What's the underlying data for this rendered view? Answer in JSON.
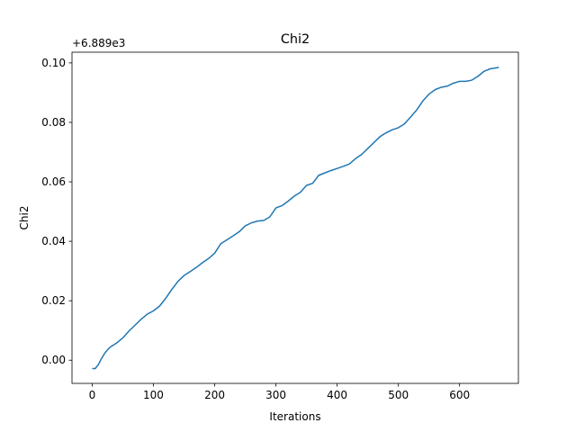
{
  "chart_data": {
    "type": "line",
    "title": "Chi2",
    "xlabel": "Iterations",
    "ylabel": "Chi2",
    "offset_text": "+6.889e3",
    "xlim": [
      -33,
      696
    ],
    "ylim": [
      -0.0078,
      0.1036
    ],
    "x_ticks": [
      0,
      100,
      200,
      300,
      400,
      500,
      600
    ],
    "y_ticks": [
      0.0,
      0.02,
      0.04,
      0.06,
      0.08,
      0.1
    ],
    "x_tick_labels": [
      "0",
      "100",
      "200",
      "300",
      "400",
      "500",
      "600"
    ],
    "y_tick_labels": [
      "0.00",
      "0.02",
      "0.04",
      "0.06",
      "0.08",
      "0.10"
    ],
    "grid": false,
    "line_color": "#1f77b4",
    "series": [
      {
        "x": [
          0,
          5,
          10,
          15,
          20,
          25,
          30,
          40,
          50,
          60,
          70,
          80,
          90,
          100,
          110,
          120,
          130,
          140,
          150,
          160,
          170,
          180,
          190,
          200,
          210,
          220,
          230,
          240,
          250,
          260,
          270,
          280,
          290,
          300,
          310,
          320,
          330,
          340,
          350,
          360,
          370,
          380,
          390,
          400,
          410,
          420,
          430,
          440,
          450,
          460,
          470,
          480,
          490,
          500,
          510,
          520,
          530,
          540,
          550,
          560,
          570,
          580,
          590,
          600,
          610,
          620,
          630,
          640,
          650,
          664
        ],
        "y": [
          -0.0028,
          -0.0028,
          -0.0015,
          0.0005,
          0.0022,
          0.0035,
          0.0045,
          0.0058,
          0.0075,
          0.0098,
          0.0118,
          0.0138,
          0.0155,
          0.0166,
          0.0182,
          0.0208,
          0.0238,
          0.0265,
          0.0285,
          0.0298,
          0.0312,
          0.0328,
          0.0342,
          0.036,
          0.0392,
          0.0405,
          0.0418,
          0.0432,
          0.0452,
          0.0462,
          0.0468,
          0.047,
          0.0482,
          0.0512,
          0.052,
          0.0535,
          0.0552,
          0.0565,
          0.0588,
          0.0595,
          0.0622,
          0.063,
          0.0638,
          0.0645,
          0.0652,
          0.066,
          0.0678,
          0.0692,
          0.0712,
          0.0732,
          0.0752,
          0.0765,
          0.0775,
          0.0782,
          0.0795,
          0.0818,
          0.0842,
          0.0872,
          0.0895,
          0.091,
          0.0918,
          0.0922,
          0.0932,
          0.0938,
          0.0938,
          0.0942,
          0.0955,
          0.0972,
          0.098,
          0.0985
        ]
      }
    ]
  }
}
